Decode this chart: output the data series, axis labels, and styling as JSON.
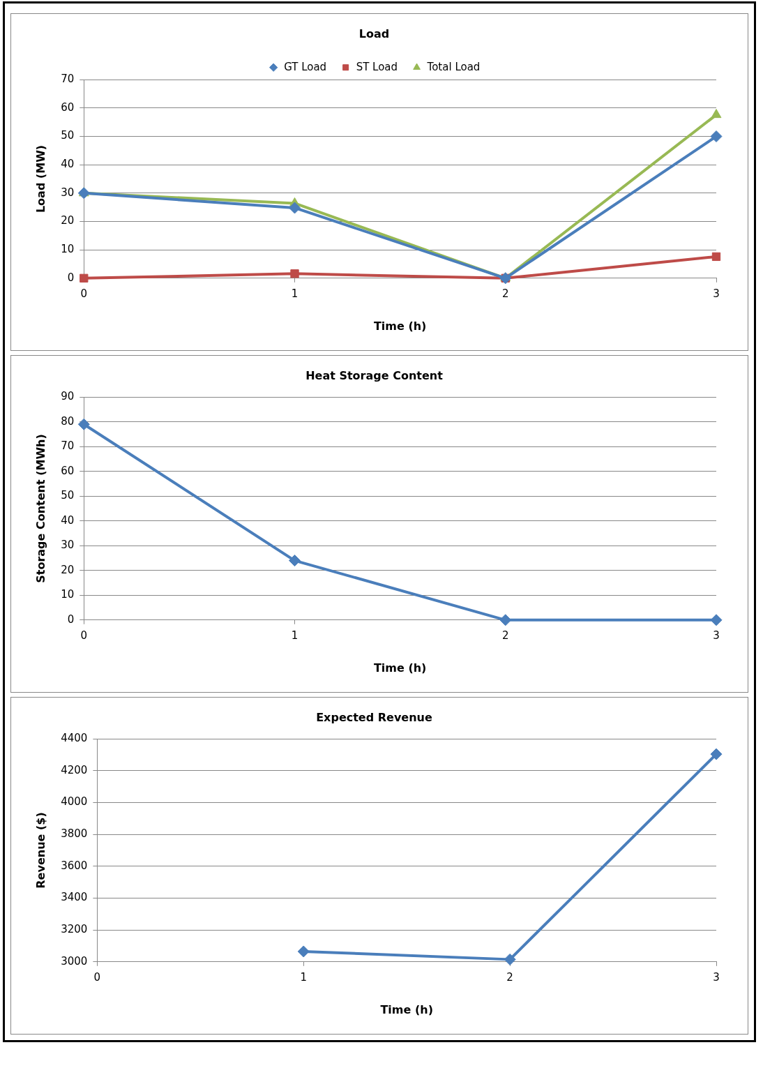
{
  "chart_data": [
    {
      "type": "line",
      "title": "Load",
      "xlabel": "Time (h)",
      "ylabel": "Load (MW)",
      "x": [
        0,
        1,
        2,
        3
      ],
      "xlim": [
        0,
        3
      ],
      "xticks": [
        0,
        1,
        2,
        3
      ],
      "ylim": [
        0,
        70
      ],
      "yticks": [
        0,
        10,
        20,
        30,
        40,
        50,
        60,
        70
      ],
      "grid": "y",
      "legend": "top",
      "line_style": "solid",
      "series": [
        {
          "name": "GT Load",
          "color": "#4a7ebb",
          "marker": "diamond",
          "values": [
            30,
            24.8,
            0,
            50
          ]
        },
        {
          "name": "ST Load",
          "color": "#be4b48",
          "marker": "square",
          "values": [
            0,
            1.6,
            0,
            7.6
          ]
        },
        {
          "name": "Total Load",
          "color": "#98b954",
          "marker": "triangle",
          "values": [
            30,
            26.4,
            0,
            57.6
          ]
        }
      ]
    },
    {
      "type": "line",
      "title": "Heat Storage Content",
      "xlabel": "Time (h)",
      "ylabel": "Storage Content (MWh)",
      "x": [
        0,
        1,
        2,
        3
      ],
      "xlim": [
        0,
        3
      ],
      "xticks": [
        0,
        1,
        2,
        3
      ],
      "ylim": [
        0,
        90
      ],
      "yticks": [
        0,
        10,
        20,
        30,
        40,
        50,
        60,
        70,
        80,
        90
      ],
      "grid": "y",
      "line_style": "solid",
      "series": [
        {
          "color": "#4a7ebb",
          "marker": "diamond",
          "values": [
            79,
            24,
            0,
            0
          ]
        }
      ]
    },
    {
      "type": "line",
      "title": "Expected Revenue",
      "xlabel": "Time (h)",
      "ylabel": "Revenue ($)",
      "xlim": [
        0,
        3
      ],
      "xticks": [
        0,
        1,
        2,
        3
      ],
      "ylim": [
        3000,
        4400
      ],
      "yticks": [
        3000,
        3200,
        3400,
        3600,
        3800,
        4000,
        4200,
        4400
      ],
      "grid": "y",
      "line_style": "solid",
      "series": [
        {
          "color": "#4a7ebb",
          "marker": "diamond",
          "x": [
            1,
            2,
            3
          ],
          "values": [
            3065,
            3015,
            4304
          ]
        }
      ]
    }
  ]
}
